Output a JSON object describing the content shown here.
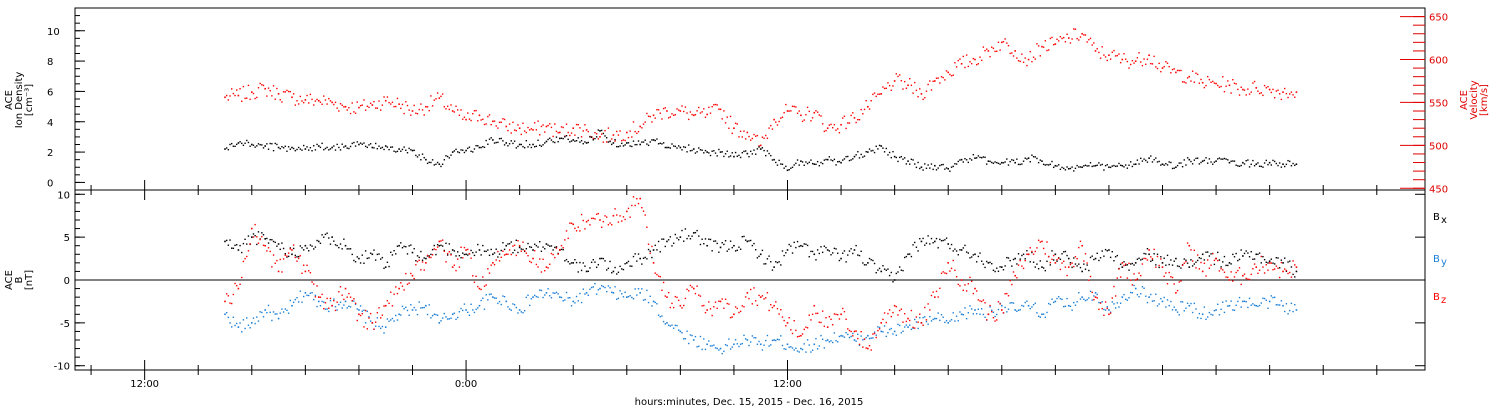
{
  "chart_data": [
    {
      "type": "scatter",
      "panel": "top",
      "title": "",
      "left_axis_label": [
        "ACE",
        "Ion Density",
        "[cm⁻³]"
      ],
      "right_axis_label": [
        "ACE",
        "Velocity",
        "[km/s]"
      ],
      "left_ylim": [
        -0.5,
        11.5
      ],
      "right_ylim": [
        448,
        660
      ],
      "left_ticks": [
        "0",
        "2",
        "4",
        "6",
        "8",
        "10"
      ],
      "right_ticks": [
        "450",
        "500",
        "550",
        "600",
        "650"
      ],
      "grid": false,
      "series": [
        {
          "axis": "left",
          "color": "#000000",
          "x_hours": [
            -9.0,
            -8.5,
            -8.0,
            -7.5,
            -7.0,
            -6.5,
            -6.0,
            -5.5,
            -5.0,
            -4.5,
            -4.0,
            -3.5,
            -3.0,
            -2.5,
            -2.0,
            -1.5,
            -1.0,
            -0.5,
            0.0,
            0.5,
            1.0,
            1.5,
            2.0,
            2.5,
            3.0,
            3.5,
            4.0,
            4.5,
            5.0,
            5.5,
            6.0,
            6.5,
            7.0,
            7.5,
            8.0,
            8.5,
            9.0,
            9.5,
            10.0,
            10.5,
            11.0,
            11.5,
            12.0,
            12.5,
            13.0,
            13.5,
            14.0,
            14.5,
            15.0,
            15.5,
            16.0,
            16.5,
            17.0,
            17.5,
            18.0,
            18.5,
            19.0,
            19.5,
            20.0,
            20.5,
            21.0,
            21.5,
            22.0,
            22.5,
            23.0,
            23.5,
            24.0,
            24.5,
            25.0,
            25.5,
            26.0,
            26.5,
            27.0,
            27.5,
            28.0,
            28.5,
            29.0,
            29.5,
            30.0,
            30.5,
            31.0
          ],
          "values": [
            2.2,
            2.6,
            2.5,
            2.4,
            2.3,
            2.3,
            2.2,
            2.4,
            2.3,
            2.4,
            2.5,
            2.3,
            2.4,
            2.2,
            2.1,
            1.5,
            1.2,
            2.0,
            2.1,
            2.3,
            2.8,
            2.6,
            2.5,
            2.5,
            2.7,
            2.9,
            2.8,
            2.6,
            3.4,
            2.6,
            2.6,
            2.5,
            2.8,
            2.3,
            2.3,
            2.2,
            2.0,
            2.0,
            1.7,
            1.9,
            2.2,
            1.5,
            0.8,
            1.4,
            1.2,
            1.5,
            1.3,
            1.7,
            2.0,
            2.4,
            1.7,
            1.4,
            1.0,
            1.1,
            0.9,
            1.5,
            1.6,
            1.4,
            1.3,
            1.3,
            1.6,
            1.4,
            1.1,
            0.9,
            1.0,
            1.1,
            1.0,
            1.1,
            1.2,
            1.6,
            1.2,
            1.0,
            1.5,
            1.4,
            1.4,
            1.3,
            1.3,
            1.2,
            1.3,
            1.2,
            1.2
          ]
        },
        {
          "axis": "right",
          "color": "#ff0000",
          "x_hours": [
            -9.0,
            -8.5,
            -8.0,
            -7.5,
            -7.0,
            -6.5,
            -6.0,
            -5.5,
            -5.0,
            -4.5,
            -4.0,
            -3.5,
            -3.0,
            -2.5,
            -2.0,
            -1.5,
            -1.0,
            -0.5,
            0.0,
            0.5,
            1.0,
            1.5,
            2.0,
            2.5,
            3.0,
            3.5,
            4.0,
            4.5,
            5.0,
            5.5,
            6.0,
            6.5,
            7.0,
            7.5,
            8.0,
            8.5,
            9.0,
            9.5,
            10.0,
            10.5,
            11.0,
            11.5,
            12.0,
            12.5,
            13.0,
            13.5,
            14.0,
            14.5,
            15.0,
            15.5,
            16.0,
            16.5,
            17.0,
            17.5,
            18.0,
            18.5,
            19.0,
            19.5,
            20.0,
            20.5,
            21.0,
            21.5,
            22.0,
            22.5,
            23.0,
            23.5,
            24.0,
            24.5,
            25.0,
            25.5,
            26.0,
            26.5,
            27.0,
            27.5,
            28.0,
            28.5,
            29.0,
            29.5,
            30.0,
            30.5,
            31.0
          ],
          "values": [
            556,
            558,
            562,
            566,
            560,
            556,
            553,
            552,
            550,
            545,
            544,
            547,
            552,
            548,
            540,
            545,
            555,
            540,
            530,
            535,
            528,
            522,
            520,
            518,
            522,
            515,
            520,
            518,
            510,
            512,
            515,
            522,
            535,
            540,
            540,
            535,
            536,
            542,
            520,
            515,
            500,
            530,
            540,
            535,
            538,
            520,
            524,
            532,
            545,
            560,
            575,
            570,
            560,
            575,
            585,
            595,
            600,
            610,
            620,
            610,
            600,
            615,
            618,
            625,
            630,
            610,
            605,
            600,
            598,
            605,
            590,
            585,
            580,
            573,
            572,
            570,
            565,
            567,
            565,
            562,
            562
          ]
        }
      ]
    },
    {
      "type": "scatter",
      "panel": "bottom",
      "title": "",
      "left_axis_label": [
        "ACE",
        "B",
        "[nT]"
      ],
      "ylim": [
        -10.5,
        10.5
      ],
      "y_ticks": [
        "-10",
        "-5",
        "0",
        "5",
        "10"
      ],
      "legend_placement": "right",
      "grid": false,
      "series": [
        {
          "name": "Bx",
          "color": "#000000",
          "x_hours": [
            -9.0,
            -8.5,
            -8.0,
            -7.5,
            -7.0,
            -6.5,
            -6.0,
            -5.5,
            -5.0,
            -4.5,
            -4.0,
            -3.5,
            -3.0,
            -2.5,
            -2.0,
            -1.5,
            -1.0,
            -0.5,
            0.0,
            0.5,
            1.0,
            1.5,
            2.0,
            2.5,
            3.0,
            3.5,
            4.0,
            4.5,
            5.0,
            5.5,
            6.0,
            6.5,
            7.0,
            7.5,
            8.0,
            8.5,
            9.0,
            9.5,
            10.0,
            10.5,
            11.0,
            11.5,
            12.0,
            12.5,
            13.0,
            13.5,
            14.0,
            14.5,
            15.0,
            15.5,
            16.0,
            16.5,
            17.0,
            17.5,
            18.0,
            18.5,
            19.0,
            19.5,
            20.0,
            20.5,
            21.0,
            21.5,
            22.0,
            22.5,
            23.0,
            23.5,
            24.0,
            24.5,
            25.0,
            25.5,
            26.0,
            26.5,
            27.0,
            27.5,
            28.0,
            28.5,
            29.0,
            29.5,
            30.0,
            30.5,
            31.0
          ],
          "values": [
            4.5,
            3.5,
            5.0,
            4.8,
            4.2,
            3.0,
            4.0,
            4.5,
            5.0,
            4.0,
            2.5,
            3.0,
            1.5,
            4.0,
            3.2,
            2.5,
            4.0,
            3.5,
            3.0,
            3.5,
            3.0,
            4.0,
            3.8,
            3.5,
            4.2,
            3.5,
            2.0,
            1.0,
            2.5,
            1.0,
            2.0,
            2.5,
            3.5,
            4.5,
            5.0,
            5.5,
            4.0,
            3.8,
            4.0,
            4.5,
            3.0,
            1.5,
            3.5,
            4.0,
            3.0,
            3.5,
            2.5,
            3.5,
            2.0,
            1.0,
            0.0,
            3.0,
            4.5,
            4.5,
            4.2,
            3.5,
            3.0,
            2.0,
            1.5,
            2.5,
            3.0,
            1.5,
            3.0,
            2.5,
            1.0,
            2.5,
            3.5,
            1.5,
            2.0,
            3.0,
            2.0,
            2.5,
            1.5,
            3.0,
            2.5,
            2.0,
            2.8,
            3.0,
            2.2,
            2.0,
            1.0
          ]
        },
        {
          "name": "By",
          "color": "#1b7fd6",
          "x_hours": [
            -9.0,
            -8.5,
            -8.0,
            -7.5,
            -7.0,
            -6.5,
            -6.0,
            -5.5,
            -5.0,
            -4.5,
            -4.0,
            -3.5,
            -3.0,
            -2.5,
            -2.0,
            -1.5,
            -1.0,
            -0.5,
            0.0,
            0.5,
            1.0,
            1.5,
            2.0,
            2.5,
            3.0,
            3.5,
            4.0,
            4.5,
            5.0,
            5.5,
            6.0,
            6.5,
            7.0,
            7.5,
            8.0,
            8.5,
            9.0,
            9.5,
            10.0,
            10.5,
            11.0,
            11.5,
            12.0,
            12.5,
            13.0,
            13.5,
            14.0,
            14.5,
            15.0,
            15.5,
            16.0,
            16.5,
            17.0,
            17.5,
            18.0,
            18.5,
            19.0,
            19.5,
            20.0,
            20.5,
            21.0,
            21.5,
            22.0,
            22.5,
            23.0,
            23.5,
            24.0,
            24.5,
            25.0,
            25.5,
            26.0,
            26.5,
            27.0,
            27.5,
            28.0,
            28.5,
            29.0,
            29.5,
            30.0,
            30.5,
            31.0
          ],
          "values": [
            -4.0,
            -5.5,
            -5.0,
            -3.5,
            -4.5,
            -3.0,
            -1.5,
            -2.5,
            -3.0,
            -2.5,
            -3.5,
            -5.0,
            -5.5,
            -4.0,
            -3.5,
            -3.0,
            -5.0,
            -4.0,
            -3.5,
            -3.0,
            -2.0,
            -2.5,
            -3.5,
            -2.0,
            -1.5,
            -2.0,
            -2.5,
            -1.5,
            -1.0,
            -1.5,
            -2.0,
            -1.5,
            -2.5,
            -5.0,
            -6.0,
            -7.0,
            -7.5,
            -8.0,
            -7.5,
            -7.0,
            -7.5,
            -7.0,
            -7.5,
            -8.0,
            -7.5,
            -7.0,
            -6.5,
            -7.0,
            -6.5,
            -6.0,
            -6.0,
            -5.5,
            -5.0,
            -4.5,
            -5.0,
            -4.0,
            -3.5,
            -4.0,
            -3.0,
            -3.5,
            -3.0,
            -4.0,
            -2.5,
            -3.0,
            -2.0,
            -1.5,
            -3.5,
            -2.0,
            -1.0,
            -2.0,
            -2.5,
            -3.5,
            -3.0,
            -4.0,
            -3.5,
            -3.0,
            -2.5,
            -3.0,
            -2.5,
            -3.0,
            -3.5
          ]
        },
        {
          "name": "Bz",
          "color": "#ff0000",
          "x_hours": [
            -9.0,
            -8.5,
            -8.0,
            -7.5,
            -7.0,
            -6.5,
            -6.0,
            -5.5,
            -5.0,
            -4.5,
            -4.0,
            -3.5,
            -3.0,
            -2.5,
            -2.0,
            -1.5,
            -1.0,
            -0.5,
            0.0,
            0.5,
            1.0,
            1.5,
            2.0,
            2.5,
            3.0,
            3.5,
            4.0,
            4.5,
            5.0,
            5.5,
            6.0,
            6.5,
            7.0,
            7.5,
            8.0,
            8.5,
            9.0,
            9.5,
            10.0,
            10.5,
            11.0,
            11.5,
            12.0,
            12.5,
            13.0,
            13.5,
            14.0,
            14.5,
            15.0,
            15.5,
            16.0,
            16.5,
            17.0,
            17.5,
            18.0,
            18.5,
            19.0,
            19.5,
            20.0,
            20.5,
            21.0,
            21.5,
            22.0,
            22.5,
            23.0,
            23.5,
            24.0,
            24.5,
            25.0,
            25.5,
            26.0,
            26.5,
            27.0,
            27.5,
            28.0,
            28.5,
            29.0,
            29.5,
            30.0,
            30.5,
            31.0
          ],
          "values": [
            -2.5,
            -1.0,
            6.0,
            4.0,
            1.0,
            3.5,
            1.0,
            -2.0,
            -3.0,
            -1.0,
            -4.0,
            -5.0,
            -3.0,
            -1.0,
            0.5,
            2.0,
            4.5,
            1.5,
            3.5,
            -1.0,
            2.0,
            3.0,
            4.0,
            2.5,
            1.5,
            3.5,
            6.5,
            6.8,
            7.0,
            7.5,
            8.0,
            9.5,
            2.0,
            -2.0,
            -3.0,
            -1.0,
            -3.5,
            -2.5,
            -4.0,
            -1.5,
            -2.0,
            -3.0,
            -5.0,
            -6.5,
            -3.0,
            -5.5,
            -4.0,
            -6.0,
            -8.0,
            -5.0,
            -3.0,
            -4.5,
            -5.0,
            -2.0,
            2.0,
            0.0,
            -1.0,
            -4.0,
            -3.5,
            0.5,
            3.0,
            4.5,
            2.0,
            1.5,
            4.0,
            -2.0,
            -4.0,
            2.0,
            0.0,
            3.5,
            1.5,
            -1.5,
            4.0,
            1.0,
            2.5,
            0.0,
            0.5,
            1.5,
            2.0,
            1.0,
            1.5
          ]
        }
      ]
    }
  ],
  "x_axis": {
    "label": "hours:minutes, Dec. 15, 2015 - Dec. 16, 2015",
    "range_hours": [
      -14.6,
      35.8
    ],
    "tick_labels": [
      {
        "hour": -12,
        "label": "12:00"
      },
      {
        "hour": 0,
        "label": "0:00"
      },
      {
        "hour": 12,
        "label": "12:00"
      }
    ],
    "minor_tick_every_hours": 2
  },
  "labels": {
    "top_left": [
      "ACE",
      "Ion Density",
      "[cm⁻³]"
    ],
    "top_right": [
      "ACE",
      "Velocity",
      "[km/s]"
    ],
    "bottom_left": [
      "ACE",
      "B",
      "[nT]"
    ],
    "legend": [
      {
        "main": "B",
        "sub": "x",
        "color": "#000000"
      },
      {
        "main": "B",
        "sub": "y",
        "color": "#1b7fd6"
      },
      {
        "main": "B",
        "sub": "z",
        "color": "#ff0000"
      }
    ]
  }
}
